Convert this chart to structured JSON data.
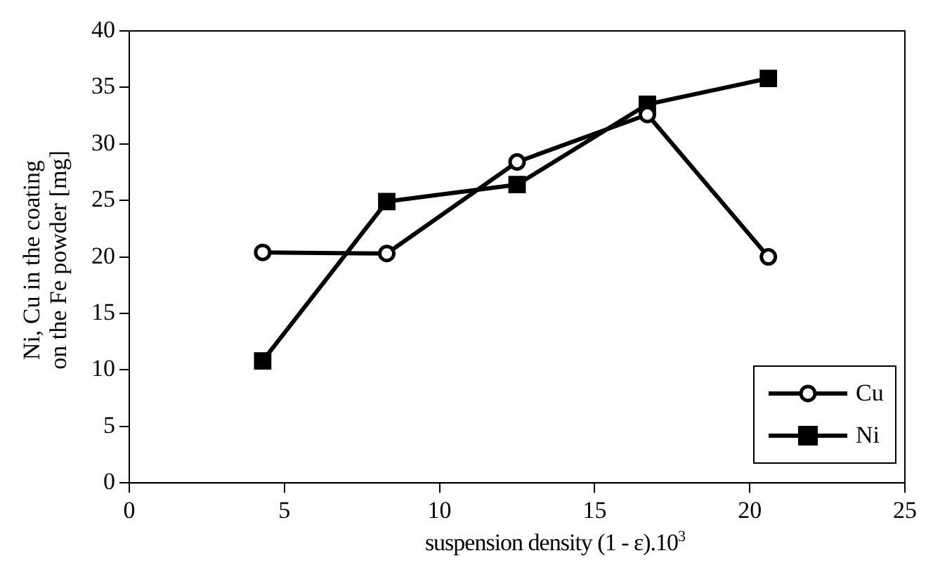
{
  "chart_data": {
    "type": "line",
    "xlabel": "suspension density (1 - ε).10$^{3}$",
    "ylabel": "Ni, Cu in the coating\non the Fe powder [mg]",
    "xlim": [
      0,
      25
    ],
    "xticks": [
      0,
      5,
      10,
      15,
      20,
      25
    ],
    "ylim": [
      0,
      40
    ],
    "yticks": [
      0,
      5,
      10,
      15,
      20,
      25,
      30,
      35,
      40
    ],
    "grid": false,
    "legend": "bottom right",
    "series": [
      {
        "name": "Cu",
        "color": "#000000",
        "marker": "circle",
        "x": [
          4.3,
          8.3,
          12.5,
          16.7,
          20.6
        ],
        "values": [
          20.4,
          20.3,
          28.4,
          32.6,
          20.0
        ]
      },
      {
        "name": "Ni",
        "color": "#000000",
        "marker": "square",
        "x": [
          4.3,
          8.3,
          12.5,
          16.7,
          20.6
        ],
        "values": [
          10.8,
          24.9,
          26.4,
          33.5,
          35.8
        ]
      }
    ]
  }
}
